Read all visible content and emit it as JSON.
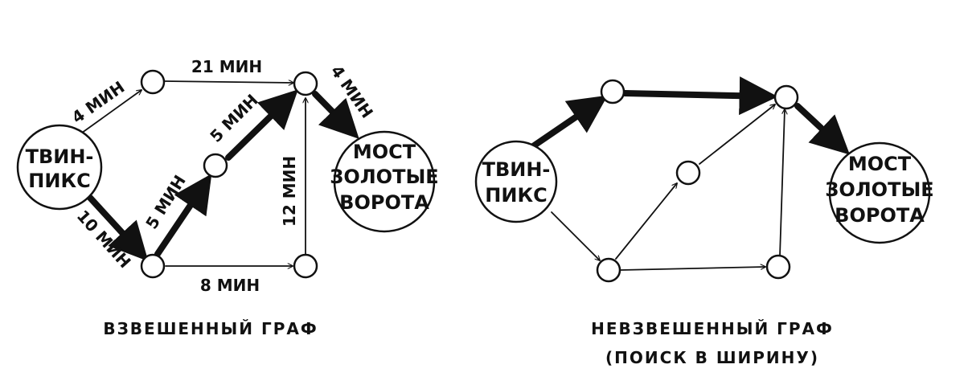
{
  "colors": {
    "ink": "#111111",
    "paper": "#ffffff"
  },
  "weighted": {
    "caption": "ВЗВЕШЕННЫЙ ГРАФ",
    "start": {
      "line1": "ТВИН-",
      "line2": "ПИКС"
    },
    "end": {
      "line1": "МОСТ",
      "line2": "ЗОЛОТЫЕ",
      "line3": "ВОРОТА"
    },
    "edges": {
      "start_to_top": "4 МИН",
      "top_to_hub": "21 МИН",
      "hub_to_end": "4 МИН",
      "start_to_bottom": "10 МИН",
      "bottom_to_mid": "5 МИН",
      "mid_to_hub": "5 МИН",
      "bottomright_to_hub": "12 МИН",
      "bottom_to_bottomright": "8 МИН"
    }
  },
  "unweighted": {
    "caption_line1": "НЕВЗВЕШЕННЫЙ ГРАФ",
    "caption_line2": "(ПОИСК В ШИРИНУ)",
    "start": {
      "line1": "ТВИН-",
      "line2": "ПИКС"
    },
    "end": {
      "line1": "МОСТ",
      "line2": "ЗОЛОТЫЕ",
      "line3": "ВОРОТА"
    }
  }
}
